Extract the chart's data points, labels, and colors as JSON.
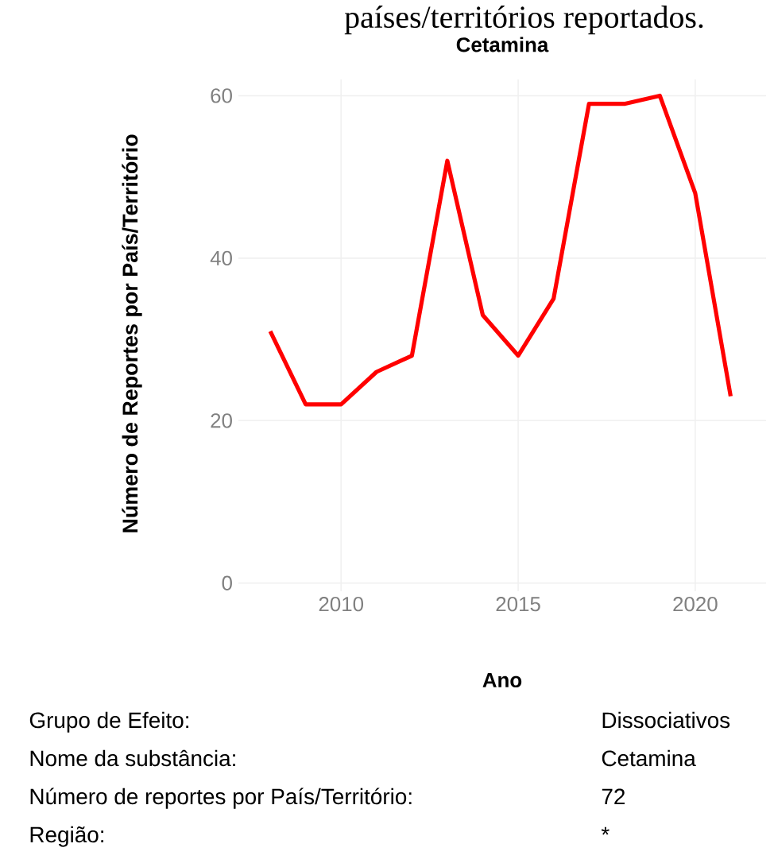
{
  "chart_data": {
    "type": "line",
    "title": "Cetamina",
    "xlabel": "Ano",
    "ylabel": "Número de Reportes por País/Território",
    "x": [
      2008,
      2009,
      2010,
      2011,
      2012,
      2013,
      2014,
      2015,
      2016,
      2017,
      2018,
      2019,
      2020,
      2021
    ],
    "series": [
      {
        "color": "#ff0000",
        "values": [
          31,
          22,
          22,
          26,
          28,
          52,
          33,
          28,
          35,
          59,
          59,
          60,
          48,
          23
        ]
      }
    ],
    "xlim": [
      2007.1,
      2022
    ],
    "ylim": [
      -1,
      62
    ],
    "xticks": [
      2010,
      2015,
      2020
    ],
    "yticks": [
      0,
      20,
      40,
      60
    ],
    "grid": true,
    "marker": "none",
    "line_style": "solid",
    "annotations": [
      "países/territórios reportados.",
      "Grupo de Efeito:",
      "Dissociativos",
      "Nome da substância:",
      "Cetamina",
      "Número de reportes por País/Território:",
      "72",
      "Região:",
      "*"
    ]
  }
}
